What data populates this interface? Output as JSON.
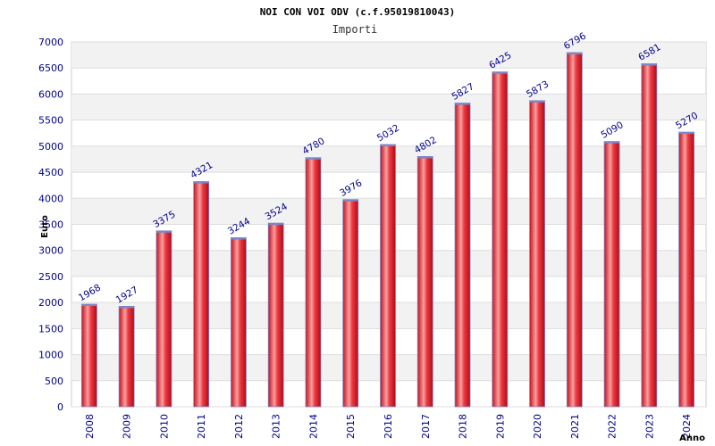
{
  "chart_data": {
    "type": "bar",
    "title": "NOI CON VOI ODV (c.f.95019810043)",
    "subtitle": "Importi",
    "xlabel": "Anno",
    "ylabel": "Euro",
    "categories": [
      "2008",
      "2009",
      "2010",
      "2011",
      "2012",
      "2013",
      "2014",
      "2015",
      "2016",
      "2017",
      "2018",
      "2019",
      "2020",
      "2021",
      "2022",
      "2023",
      "2024"
    ],
    "values": [
      1968,
      1927,
      3375,
      4321,
      3244,
      3524,
      4780,
      3976,
      5032,
      4802,
      5827,
      6425,
      5873,
      6796,
      5090,
      6581,
      5270
    ],
    "ylim": [
      0,
      7000
    ],
    "yticks": [
      0,
      500,
      1000,
      1500,
      2000,
      2500,
      3000,
      3500,
      4000,
      4500,
      5000,
      5500,
      6000,
      6500,
      7000
    ],
    "grid": true,
    "colors": {
      "bar": "#e8202a",
      "bar_highlight": "#f7a0a0",
      "bar_edge": "#7a86c8",
      "band": "#f2f2f2",
      "grid": "#dddddd",
      "label": "#00008b"
    }
  }
}
